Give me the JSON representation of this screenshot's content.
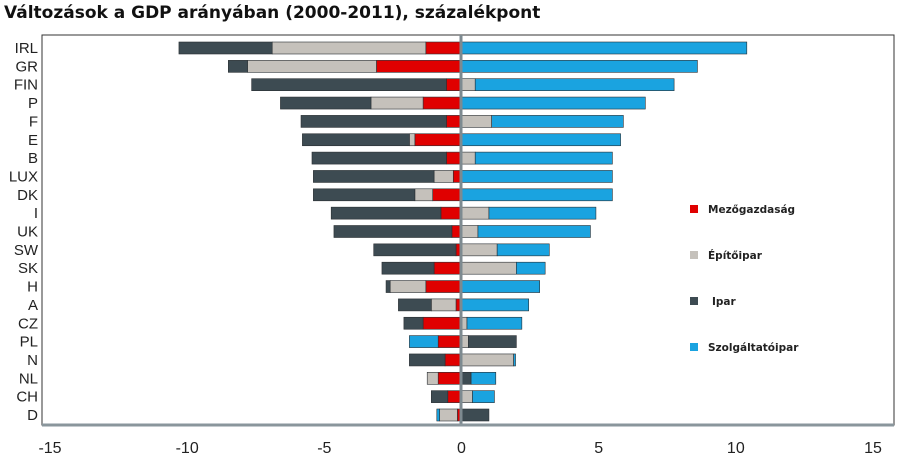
{
  "chart_data": {
    "type": "bar",
    "orientation": "horizontal-stacked-diverging",
    "title": "Változások a GDP arányában (2000-2011), százalékpont",
    "xlabel": "",
    "ylabel": "",
    "xlim": [
      -15,
      15
    ],
    "xticks": [
      -15,
      -10,
      -5,
      0,
      5,
      10,
      15
    ],
    "legend_position": "right",
    "categories": [
      "IRL",
      "GR",
      "FIN",
      "P",
      "F",
      "E",
      "B",
      "LUX",
      "DK",
      "I",
      "UK",
      "SW",
      "SK",
      "H",
      "A",
      "CZ",
      "PL",
      "N",
      "NL",
      "CH",
      "D"
    ],
    "series": [
      {
        "name": "Mezőgazdaság",
        "color": "#e00000",
        "values": [
          -1.3,
          -3.1,
          -0.55,
          -1.4,
          -0.55,
          -1.7,
          -0.55,
          -0.3,
          -1.05,
          -0.75,
          -0.35,
          -0.2,
          -1.0,
          -1.3,
          -0.2,
          -1.4,
          -0.85,
          -0.6,
          -0.85,
          -0.5,
          -0.15
        ]
      },
      {
        "name": "Építőipar",
        "color": "#c5c1bb",
        "values": [
          -5.6,
          -4.7,
          0.5,
          -1.9,
          1.1,
          -0.2,
          0.5,
          -0.7,
          -0.65,
          1.0,
          0.6,
          1.3,
          2.0,
          -1.3,
          -0.9,
          0.2,
          0.25,
          1.9,
          -0.4,
          0.4,
          -0.65
        ]
      },
      {
        "name": "Ipar",
        "color": "#3d4b52",
        "values": [
          -3.4,
          -0.7,
          -7.1,
          -3.3,
          -5.3,
          -3.9,
          -4.9,
          -4.4,
          -3.7,
          -4.0,
          -4.3,
          -3.0,
          -1.9,
          -0.15,
          -1.2,
          -0.7,
          1.75,
          -1.3,
          0.35,
          -0.6,
          1.0
        ]
      },
      {
        "name": "Szolgáltatóipar",
        "color": "#1aa3e0",
        "values": [
          10.4,
          8.6,
          7.25,
          6.7,
          4.8,
          5.8,
          5.0,
          5.5,
          5.5,
          3.9,
          4.1,
          1.9,
          1.05,
          2.85,
          2.45,
          2.0,
          -1.05,
          0.07,
          0.9,
          0.8,
          -0.1
        ]
      }
    ]
  }
}
